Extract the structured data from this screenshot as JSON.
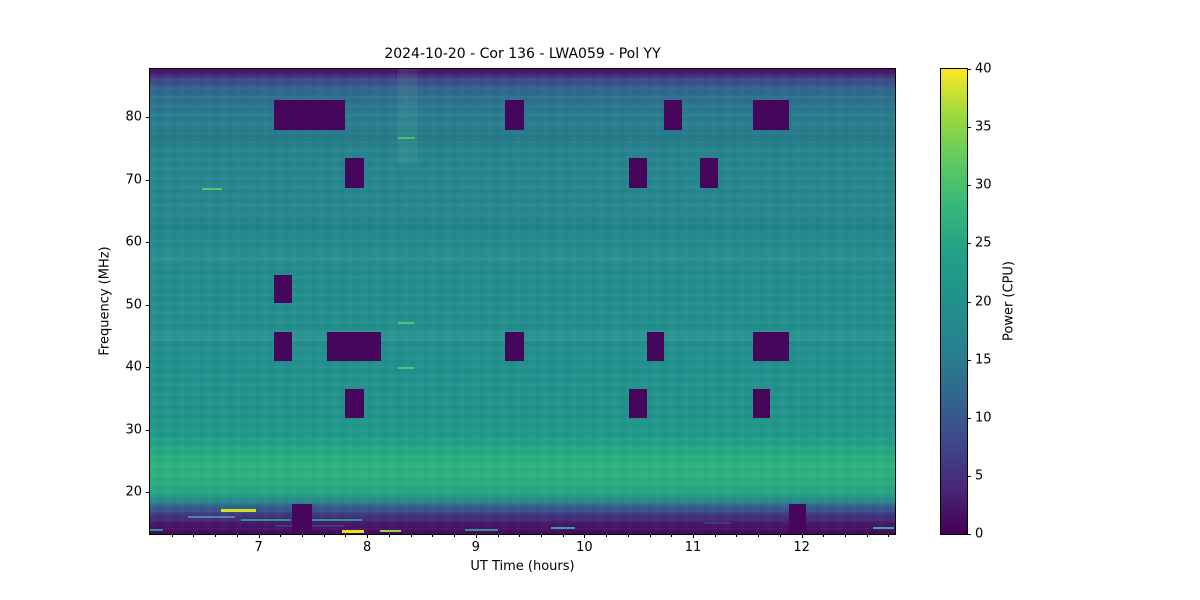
{
  "chart_data": {
    "type": "heatmap",
    "title": "2024-10-20 - Cor 136 - LWA059 - Pol YY",
    "xlabel": "UT Time (hours)",
    "ylabel": "Frequency (MHz)",
    "xlim": [
      6.0,
      12.86
    ],
    "ylim": [
      13.3,
      87.7
    ],
    "xticks": [
      7,
      8,
      9,
      10,
      11,
      12
    ],
    "xminor_tick_step": 0.2,
    "yticks": [
      20,
      30,
      40,
      50,
      60,
      70,
      80
    ],
    "grid": false,
    "colorbar": {
      "label": "Power (CPU)",
      "lim": [
        0,
        40
      ],
      "ticks": [
        0,
        5,
        10,
        15,
        20,
        25,
        30,
        35,
        40
      ],
      "colormap": "viridis",
      "gradient_stops": [
        {
          "value": 0,
          "color": "#440154"
        },
        {
          "value": 4,
          "color": "#482878"
        },
        {
          "value": 8,
          "color": "#3e4989"
        },
        {
          "value": 12,
          "color": "#31688e"
        },
        {
          "value": 16,
          "color": "#26828e"
        },
        {
          "value": 20,
          "color": "#21918c"
        },
        {
          "value": 24,
          "color": "#1fa088"
        },
        {
          "value": 28,
          "color": "#35b779"
        },
        {
          "value": 32,
          "color": "#5ec962"
        },
        {
          "value": 36,
          "color": "#9bd93c"
        },
        {
          "value": 40,
          "color": "#fde725"
        }
      ]
    },
    "background_profile": [
      {
        "freq": 87.7,
        "power": 2.0,
        "color": "#46095c"
      },
      {
        "freq": 87.2,
        "power": 3.0,
        "color": "#481769"
      },
      {
        "freq": 86.6,
        "power": 5.0,
        "color": "#472f7d"
      },
      {
        "freq": 86.0,
        "power": 8.0,
        "color": "#3f4788"
      },
      {
        "freq": 85.2,
        "power": 10.5,
        "color": "#38578c"
      },
      {
        "freq": 84.2,
        "power": 12.5,
        "color": "#31678e"
      },
      {
        "freq": 82.8,
        "power": 14.0,
        "color": "#2c718e"
      },
      {
        "freq": 80.5,
        "power": 15.0,
        "color": "#297b8e"
      },
      {
        "freq": 76.0,
        "power": 16.0,
        "color": "#26838e"
      },
      {
        "freq": 68.0,
        "power": 16.8,
        "color": "#25878e"
      },
      {
        "freq": 58.0,
        "power": 17.6,
        "color": "#238b8d"
      },
      {
        "freq": 48.0,
        "power": 18.4,
        "color": "#228f8d"
      },
      {
        "freq": 40.0,
        "power": 18.8,
        "color": "#21918d"
      },
      {
        "freq": 32.0,
        "power": 19.2,
        "color": "#21948b"
      },
      {
        "freq": 28.6,
        "power": 20.2,
        "color": "#1f9d89"
      },
      {
        "freq": 26.5,
        "power": 22.5,
        "color": "#25aa82"
      },
      {
        "freq": 24.5,
        "power": 24.0,
        "color": "#2db27d"
      },
      {
        "freq": 22.5,
        "power": 23.5,
        "color": "#2bb07e"
      },
      {
        "freq": 20.5,
        "power": 22.0,
        "color": "#28a881"
      },
      {
        "freq": 19.3,
        "power": 20.0,
        "color": "#259c87"
      },
      {
        "freq": 18.4,
        "power": 17.0,
        "color": "#2a818e"
      },
      {
        "freq": 17.6,
        "power": 13.0,
        "color": "#33608d"
      },
      {
        "freq": 16.8,
        "power": 9.5,
        "color": "#3b4788"
      },
      {
        "freq": 16.0,
        "power": 6.5,
        "color": "#432f7c"
      },
      {
        "freq": 15.2,
        "power": 4.0,
        "color": "#471d6d"
      },
      {
        "freq": 14.2,
        "power": 2.5,
        "color": "#470f62"
      },
      {
        "freq": 13.3,
        "power": 2.0,
        "color": "#45085b"
      }
    ],
    "flag_color": "#45065c",
    "flagged_regions": [
      {
        "t0": 7.14,
        "t1": 7.8,
        "f0": 77.9,
        "f1": 82.7
      },
      {
        "t0": 9.27,
        "t1": 9.44,
        "f0": 77.9,
        "f1": 82.7
      },
      {
        "t0": 10.73,
        "t1": 10.9,
        "f0": 77.9,
        "f1": 82.7
      },
      {
        "t0": 11.55,
        "t1": 11.88,
        "f0": 77.9,
        "f1": 82.7
      },
      {
        "t0": 7.8,
        "t1": 7.97,
        "f0": 68.6,
        "f1": 73.4
      },
      {
        "t0": 10.41,
        "t1": 10.58,
        "f0": 68.6,
        "f1": 73.4
      },
      {
        "t0": 11.06,
        "t1": 11.23,
        "f0": 68.6,
        "f1": 73.4
      },
      {
        "t0": 7.14,
        "t1": 7.31,
        "f0": 50.2,
        "f1": 54.7
      },
      {
        "t0": 7.14,
        "t1": 7.31,
        "f0": 41.0,
        "f1": 45.6
      },
      {
        "t0": 7.63,
        "t1": 8.13,
        "f0": 41.0,
        "f1": 45.6
      },
      {
        "t0": 9.27,
        "t1": 9.44,
        "f0": 41.0,
        "f1": 45.6
      },
      {
        "t0": 10.58,
        "t1": 10.73,
        "f0": 41.0,
        "f1": 45.6
      },
      {
        "t0": 11.55,
        "t1": 11.88,
        "f0": 41.0,
        "f1": 45.6
      },
      {
        "t0": 7.8,
        "t1": 7.97,
        "f0": 31.8,
        "f1": 36.5
      },
      {
        "t0": 10.41,
        "t1": 10.58,
        "f0": 31.8,
        "f1": 36.5
      },
      {
        "t0": 11.55,
        "t1": 11.71,
        "f0": 31.8,
        "f1": 36.5
      },
      {
        "t0": 7.31,
        "t1": 7.49,
        "f0": 13.3,
        "f1": 18.1
      },
      {
        "t0": 11.88,
        "t1": 12.04,
        "f0": 13.3,
        "f1": 18.1
      }
    ],
    "light_column": {
      "t0": 8.27,
      "t1": 8.46,
      "f0": 72.5,
      "f1": 87.7,
      "color": "rgba(140,220,175,0.10)"
    },
    "bands": [
      {
        "f0": 44.2,
        "f1": 45.6,
        "color": "rgba(255,255,255,0.05)"
      },
      {
        "f0": 56.5,
        "f1": 58.5,
        "color": "rgba(255,255,255,0.03)"
      },
      {
        "f0": 61.5,
        "f1": 63.5,
        "color": "rgba(0,0,30,0.03)"
      },
      {
        "f0": 75.5,
        "f1": 78.0,
        "color": "rgba(0,0,30,0.04)"
      }
    ],
    "streaks": [
      {
        "t0": 6.35,
        "t1": 6.78,
        "f": 16.0,
        "color": "#4e81b0",
        "h": 2
      },
      {
        "t0": 6.48,
        "t1": 6.66,
        "f": 68.5,
        "color": "#59c765",
        "h": 2
      },
      {
        "t0": 6.65,
        "t1": 6.98,
        "f": 17.1,
        "color": "#d1e11e",
        "h": 3
      },
      {
        "t0": 6.84,
        "t1": 7.3,
        "f": 15.5,
        "color": "#2f9094",
        "h": 2
      },
      {
        "t0": 6.0,
        "t1": 6.12,
        "f": 13.9,
        "color": "#2f9094",
        "h": 2
      },
      {
        "t0": 7.15,
        "t1": 7.8,
        "f": 14.6,
        "color": "#3c3a79",
        "h": 2
      },
      {
        "t0": 7.47,
        "t1": 7.95,
        "f": 15.5,
        "color": "#2f9094",
        "h": 2
      },
      {
        "t0": 7.77,
        "t1": 7.97,
        "f": 13.7,
        "color": "#e2e41a",
        "h": 3
      },
      {
        "t0": 8.12,
        "t1": 8.31,
        "f": 13.7,
        "color": "#90d743",
        "h": 2
      },
      {
        "t0": 8.28,
        "t1": 8.44,
        "f": 76.6,
        "color": "#4ac16d",
        "h": 2
      },
      {
        "t0": 8.28,
        "t1": 8.43,
        "f": 47.1,
        "color": "#52c569",
        "h": 2
      },
      {
        "t0": 8.28,
        "t1": 8.43,
        "f": 39.8,
        "color": "#52c569",
        "h": 2
      },
      {
        "t0": 8.9,
        "t1": 9.2,
        "f": 13.9,
        "color": "#2f9094",
        "h": 2
      },
      {
        "t0": 9.69,
        "t1": 9.91,
        "f": 14.2,
        "color": "#35a0a4",
        "h": 2
      },
      {
        "t0": 11.1,
        "t1": 11.35,
        "f": 15.0,
        "color": "#433880",
        "h": 2
      },
      {
        "t0": 12.66,
        "t1": 12.85,
        "f": 14.2,
        "color": "#3aa6a8",
        "h": 2
      }
    ]
  }
}
